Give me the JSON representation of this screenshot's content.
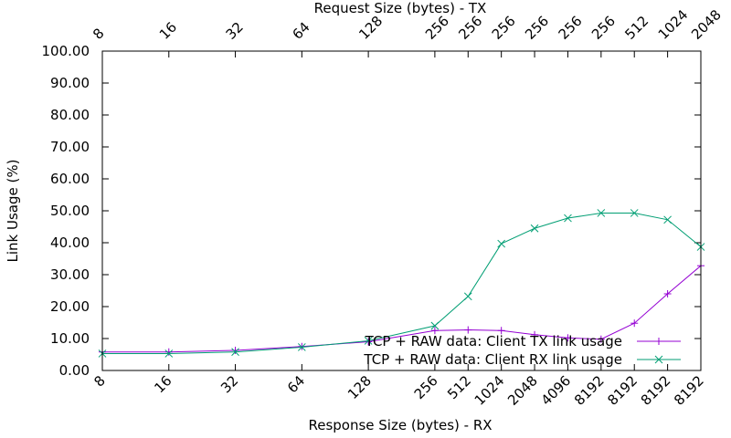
{
  "chart_data": {
    "type": "line",
    "ylabel": "Link Usage (%)",
    "xlabel": "Response Size (bytes) - RX",
    "x2label": "Request Size (bytes) - TX",
    "ylim": [
      0,
      100
    ],
    "yticks": [
      "0.00",
      "10.00",
      "20.00",
      "30.00",
      "40.00",
      "50.00",
      "60.00",
      "70.00",
      "80.00",
      "90.00",
      "100.00"
    ],
    "x_bottom_ticks": [
      "8",
      "16",
      "32",
      "64",
      "128",
      "256",
      "512",
      "1024",
      "2048",
      "4096",
      "8192",
      "8192",
      "8192",
      "8192"
    ],
    "x_top_ticks": [
      "8",
      "16",
      "32",
      "64",
      "128",
      "256",
      "256",
      "256",
      "256",
      "256",
      "256",
      "512",
      "1024",
      "2048"
    ],
    "grid": false,
    "legend_position": "bottom-right",
    "series": [
      {
        "name": "TCP + RAW data: Client TX link usage",
        "color": "#9400d3",
        "marker": "plus",
        "points": [
          [
            0,
            5.8
          ],
          [
            1,
            5.8
          ],
          [
            2,
            6.3
          ],
          [
            3,
            7.5
          ],
          [
            4,
            9.0
          ],
          [
            5,
            12.5
          ],
          [
            5.5,
            12.7
          ],
          [
            6,
            12.5
          ],
          [
            6.5,
            11.2
          ],
          [
            7,
            10.2
          ],
          [
            7.5,
            9.8
          ],
          [
            8,
            14.8
          ],
          [
            8.5,
            24.0
          ],
          [
            9,
            32.8
          ]
        ]
      },
      {
        "name": "TCP + RAW data: Client RX link usage",
        "color": "#009e73",
        "marker": "cross",
        "points": [
          [
            0,
            5.3
          ],
          [
            1,
            5.3
          ],
          [
            2,
            5.8
          ],
          [
            3,
            7.3
          ],
          [
            4,
            9.3
          ],
          [
            5,
            14.0
          ],
          [
            5.5,
            23.2
          ],
          [
            6,
            39.7
          ],
          [
            6.5,
            44.5
          ],
          [
            7,
            47.7
          ],
          [
            7.5,
            49.3
          ],
          [
            8,
            49.3
          ],
          [
            8.5,
            47.2
          ],
          [
            9,
            38.7
          ]
        ]
      }
    ]
  }
}
